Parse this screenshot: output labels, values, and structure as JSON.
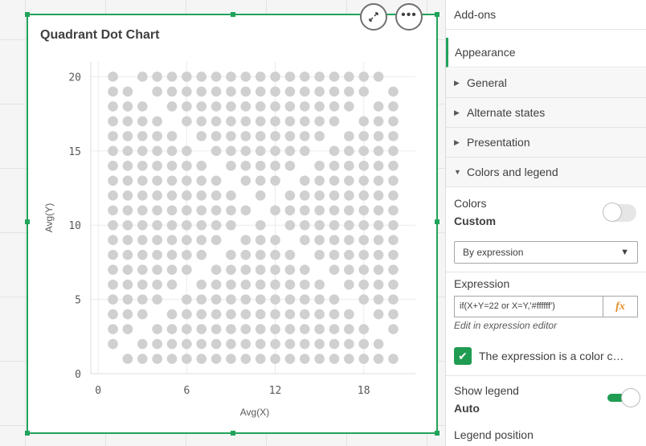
{
  "chart": {
    "title": "Quadrant Dot Chart",
    "expand_icon": "expand-arrows-icon",
    "more_icon": "more-horizontal-icon"
  },
  "chart_data": {
    "type": "scatter",
    "title": "Quadrant Dot Chart",
    "xlabel": "Avg(X)",
    "ylabel": "Avg(Y)",
    "xlim": [
      -0.5,
      21.5
    ],
    "ylim": [
      0,
      21
    ],
    "x_ticks": [
      "0",
      "6",
      "12",
      "18"
    ],
    "y_ticks": [
      "0",
      "5",
      "10",
      "15",
      "20"
    ],
    "grid": true,
    "dot_color": "#d0d0d0",
    "description_rule": "points on integer grid x,y in 1..20 (plus x=0 column), hidden where X+Y=22 or X=Y",
    "grid_min": 1,
    "grid_max": 20,
    "left_column_x": 0
  },
  "props": {
    "addons": "Add-ons",
    "appearance": "Appearance",
    "general": "General",
    "alternate_states": "Alternate states",
    "presentation": "Presentation",
    "colors_legend": "Colors and legend",
    "colors_label": "Colors",
    "colors_value": "Custom",
    "colors_toggle_on": false,
    "by_expression": "By expression",
    "expression_label": "Expression",
    "expression_value": "if(X+Y=22 or X=Y,'#ffffff')",
    "fx_label": "fx",
    "edit_link": "Edit in expression editor",
    "color_check_label": "The expression is a color c…",
    "color_check_checked": true,
    "show_legend_label": "Show legend",
    "show_legend_value": "Auto",
    "show_legend_on": true,
    "legend_position_label": "Legend position",
    "accent": "#20a35a"
  }
}
